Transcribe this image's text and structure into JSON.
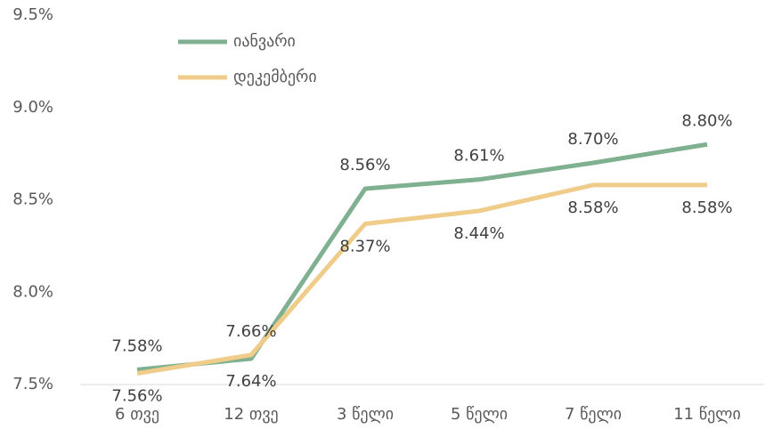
{
  "chart_data": {
    "type": "line",
    "categories": [
      "6 თვე",
      "12 თვე",
      "3 წელი",
      "5 წელი",
      "7 წელი",
      "11 წელი"
    ],
    "series": [
      {
        "name": "იანვარი",
        "color": "#7fb08f",
        "values": [
          7.58,
          7.64,
          8.56,
          8.61,
          8.7,
          8.8
        ],
        "value_labels": [
          "7.58%",
          "7.64%",
          "8.56%",
          "8.61%",
          "8.70%",
          "8.80%"
        ]
      },
      {
        "name": "დეკემბერი",
        "color": "#f0cc8a",
        "values": [
          7.56,
          7.66,
          8.37,
          8.44,
          8.58,
          8.58
        ],
        "value_labels": [
          "7.56%",
          "7.66%",
          "8.37%",
          "8.44%",
          "8.58%",
          "8.58%"
        ]
      }
    ],
    "ylim": [
      7.5,
      9.5
    ],
    "yticks": [
      {
        "value": 7.5,
        "label": "7.5%"
      },
      {
        "value": 8.0,
        "label": "8.0%"
      },
      {
        "value": 8.5,
        "label": "8.5%"
      },
      {
        "value": 9.0,
        "label": "9.0%"
      },
      {
        "value": 9.5,
        "label": "9.5%"
      }
    ],
    "legend": "top-left",
    "grid": false
  }
}
